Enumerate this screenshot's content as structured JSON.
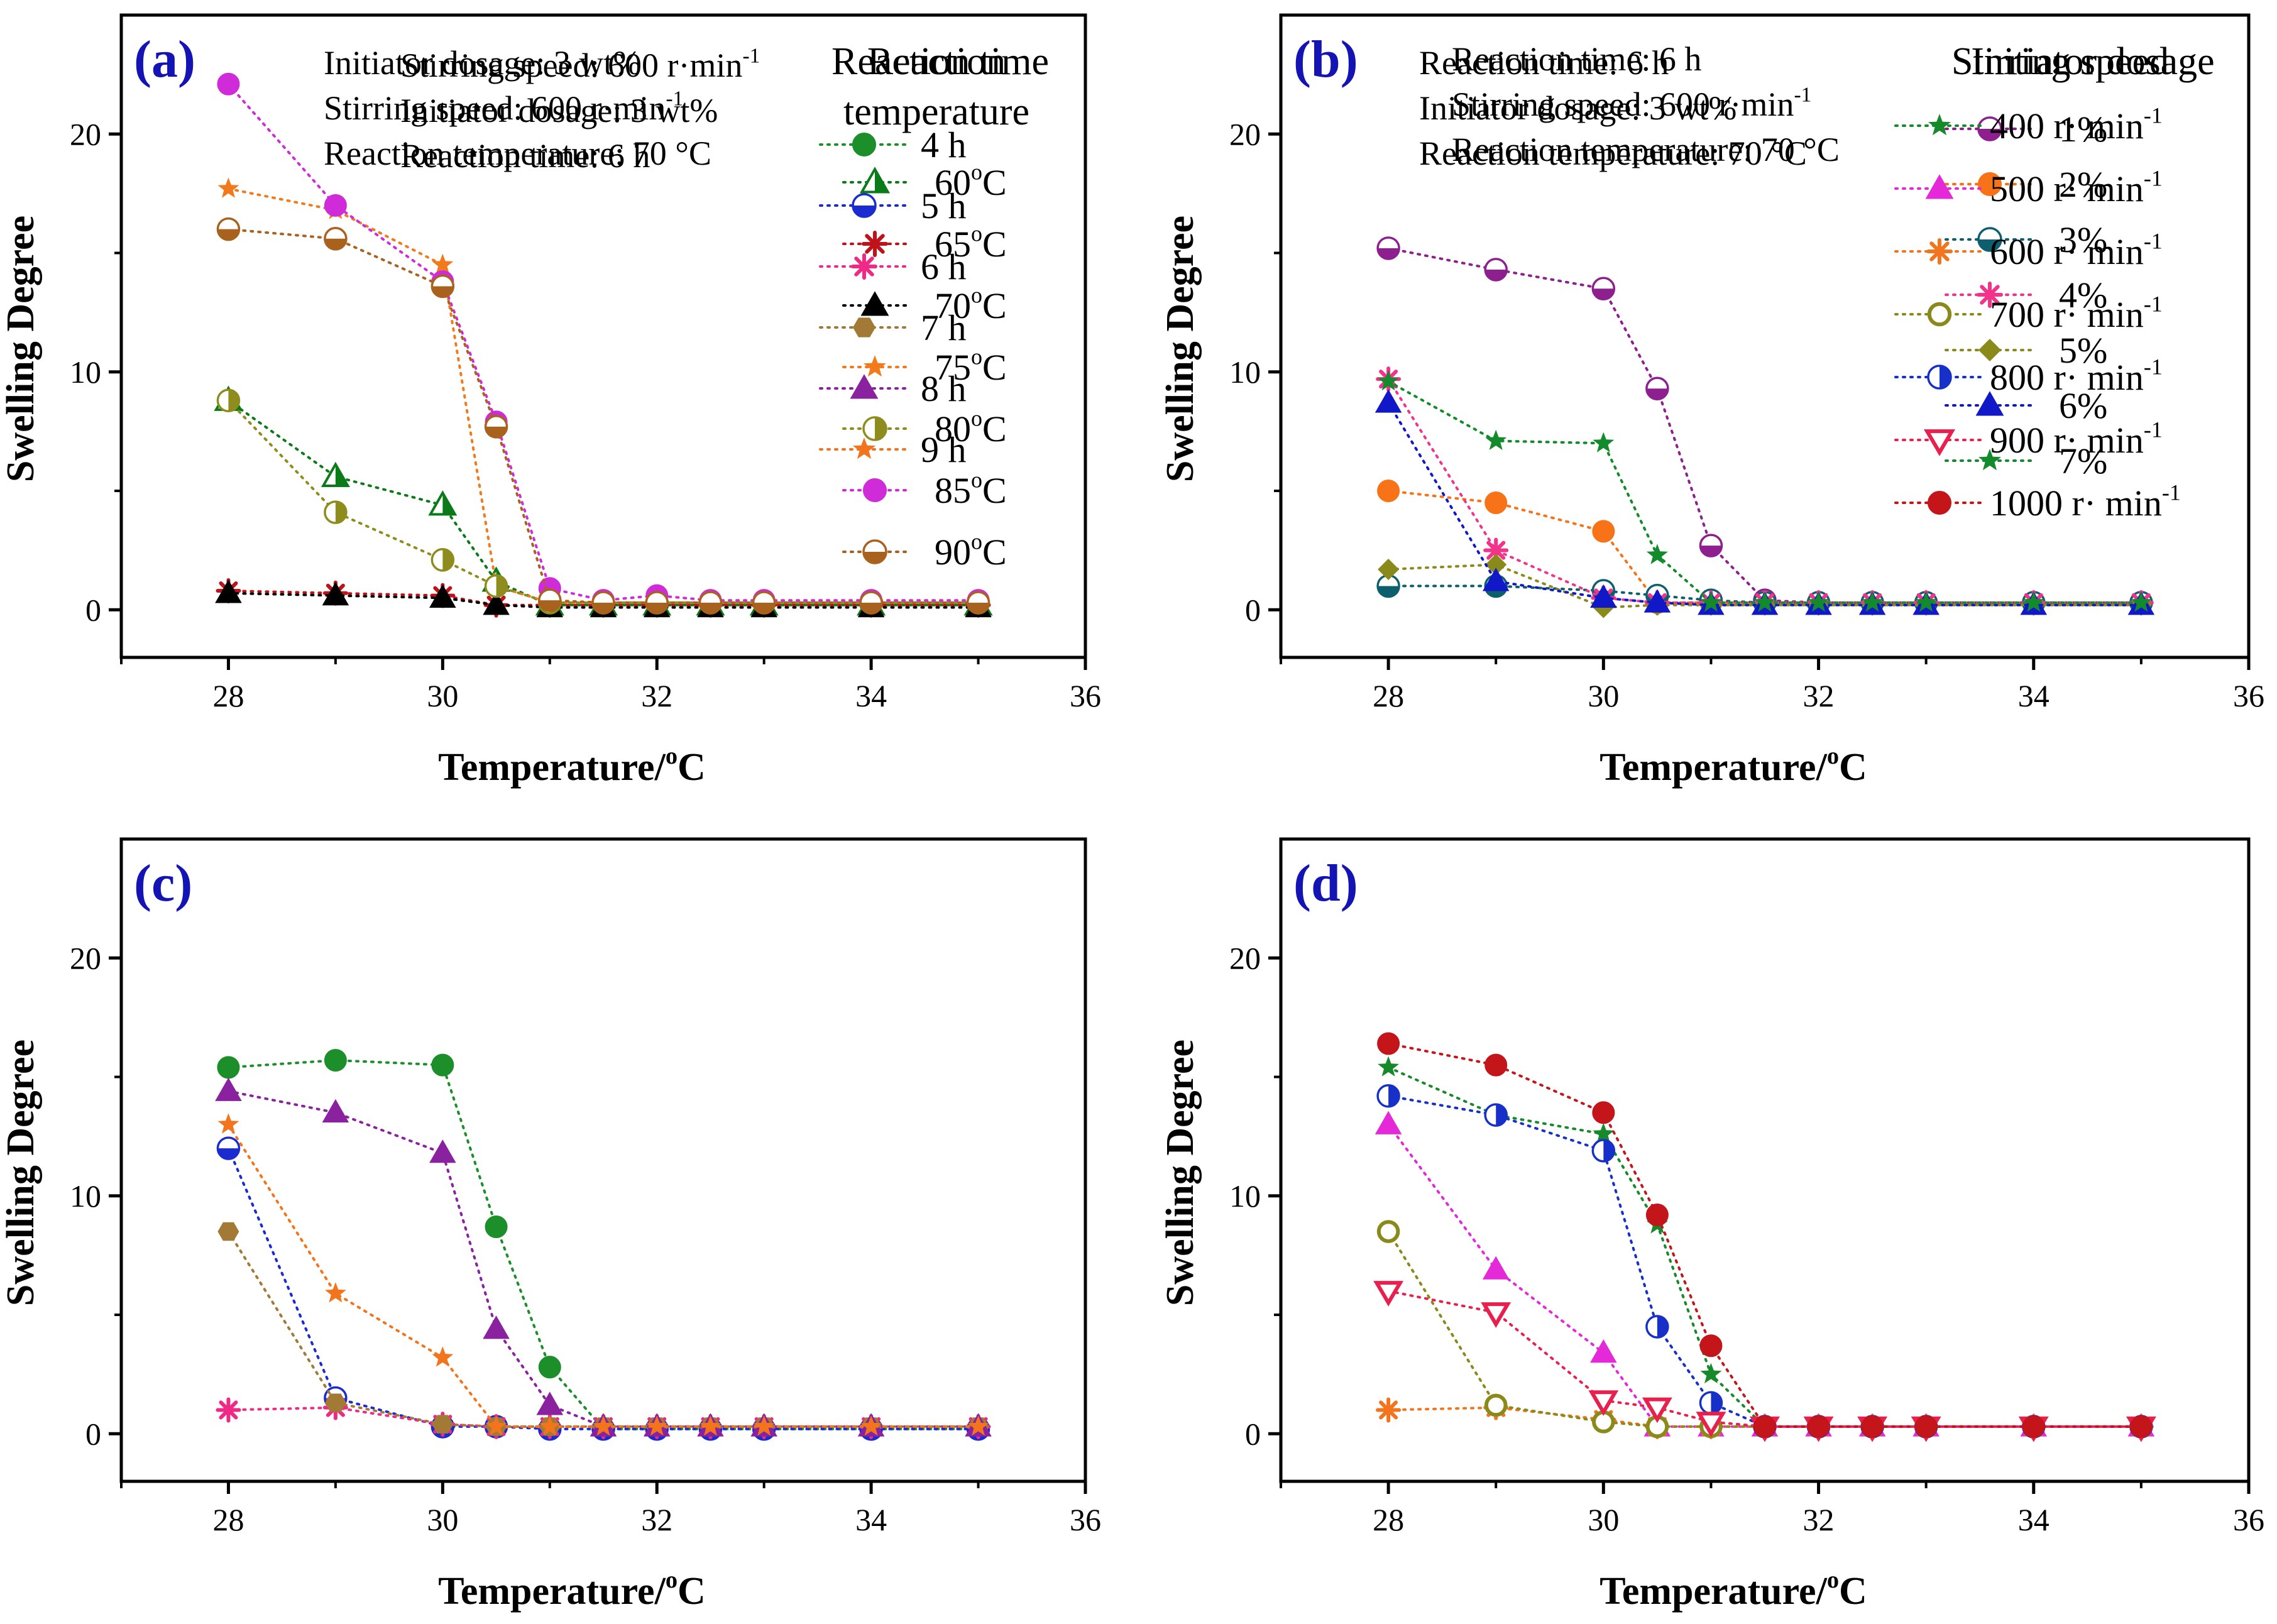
{
  "chart_data": [
    {
      "type": "line",
      "panel_label": "(a)",
      "xlabel": "Temperature/",
      "xlabel_sup": "o",
      "xlabel_unit": "C",
      "ylabel": "Swelling Degree",
      "xlim": [
        27,
        36
      ],
      "ylim": [
        -2,
        25
      ],
      "xticks": [
        28,
        30,
        32,
        34,
        36
      ],
      "yticks": [
        0,
        10,
        20
      ],
      "x": [
        28,
        29,
        30,
        30.5,
        31,
        31.5,
        32,
        32.5,
        33,
        34,
        35
      ],
      "conditions": [
        {
          "text": "Stirring speed: 600 r·min",
          "sup": "-1"
        },
        {
          "text": "Initiator dosage: 3 wt%",
          "sup": ""
        },
        {
          "text": "Reaction time: 6 h",
          "sup": ""
        }
      ],
      "legend_title": [
        "Reaction",
        "temperature"
      ],
      "series": [
        {
          "name": "60",
          "sup": "o",
          "suffix": "C",
          "color": "#0b7a18",
          "marker": "triangle-open",
          "values": [
            8.8,
            5.6,
            4.4,
            1.2,
            0.2,
            0.2,
            0.2,
            0.2,
            0.2,
            0.2,
            0.2
          ]
        },
        {
          "name": "65",
          "sup": "o",
          "suffix": "C",
          "color": "#c0121a",
          "marker": "asterisk",
          "values": [
            0.8,
            0.7,
            0.6,
            0.2,
            0.2,
            0.2,
            0.2,
            0.2,
            0.2,
            0.2,
            0.2
          ]
        },
        {
          "name": "70",
          "sup": "o",
          "suffix": "C",
          "color": "#000000",
          "marker": "triangle",
          "values": [
            0.7,
            0.6,
            0.5,
            0.2,
            0.1,
            0.1,
            0.1,
            0.1,
            0.1,
            0.1,
            0.1
          ]
        },
        {
          "name": "75",
          "sup": "o",
          "suffix": "C",
          "color": "#f07a1c",
          "marker": "star",
          "values": [
            17.7,
            16.8,
            14.5,
            1.0,
            0.3,
            0.3,
            0.3,
            0.3,
            0.3,
            0.3,
            0.3
          ]
        },
        {
          "name": "80",
          "sup": "o",
          "suffix": "C",
          "color": "#8f8c1e",
          "marker": "circle-half-right",
          "values": [
            8.8,
            4.1,
            2.1,
            1.0,
            0.3,
            0.3,
            0.3,
            0.3,
            0.3,
            0.3,
            0.3
          ]
        },
        {
          "name": "85",
          "sup": "o",
          "suffix": "C",
          "color": "#d02bd9",
          "marker": "circle",
          "values": [
            22.1,
            17.0,
            13.8,
            7.9,
            0.9,
            0.4,
            0.6,
            0.4,
            0.4,
            0.4,
            0.4
          ]
        },
        {
          "name": "90",
          "sup": "o",
          "suffix": "C",
          "color": "#a8621e",
          "marker": "circle-half-bottom",
          "values": [
            16.0,
            15.6,
            13.6,
            7.7,
            0.4,
            0.3,
            0.3,
            0.3,
            0.3,
            0.3,
            0.3
          ]
        }
      ]
    },
    {
      "type": "line",
      "panel_label": "(b)",
      "xlabel": "Temperature/",
      "xlabel_sup": "o",
      "xlabel_unit": "C",
      "ylabel": "Swelling Degree",
      "xlim": [
        27,
        36
      ],
      "ylim": [
        -2,
        25
      ],
      "xticks": [
        28,
        30,
        32,
        34,
        36
      ],
      "yticks": [
        0,
        10,
        20
      ],
      "x": [
        28,
        29,
        30,
        30.5,
        31,
        31.5,
        32,
        32.5,
        33,
        34,
        35
      ],
      "conditions": [
        {
          "text": "Reaction time: 6 h",
          "sup": ""
        },
        {
          "text": "Stirring speed: 600 r·min",
          "sup": "-1"
        },
        {
          "text": "Reaction temperature: 70 °C",
          "sup": ""
        }
      ],
      "legend_title": [
        "Initiator dosage"
      ],
      "series": [
        {
          "name": "1%",
          "sup": "",
          "suffix": "",
          "color": "#8e1f8e",
          "marker": "circle-half-bottom",
          "values": [
            15.2,
            14.3,
            13.5,
            9.3,
            2.7,
            0.4,
            0.3,
            0.3,
            0.3,
            0.3,
            0.3
          ]
        },
        {
          "name": "2%",
          "sup": "",
          "suffix": "",
          "color": "#f87218",
          "marker": "circle",
          "values": [
            5.0,
            4.5,
            3.3,
            0.3,
            0.3,
            0.3,
            0.3,
            0.3,
            0.3,
            0.3,
            0.3
          ]
        },
        {
          "name": "3%",
          "sup": "",
          "suffix": "",
          "color": "#0d5f6e",
          "marker": "circle-half-bottom",
          "values": [
            1.0,
            1.0,
            0.8,
            0.6,
            0.4,
            0.3,
            0.3,
            0.3,
            0.3,
            0.3,
            0.3
          ]
        },
        {
          "name": "4%",
          "sup": "",
          "suffix": "",
          "color": "#f2338b",
          "marker": "asterisk",
          "values": [
            9.7,
            2.5,
            0.5,
            0.3,
            0.3,
            0.3,
            0.3,
            0.3,
            0.3,
            0.3,
            0.3
          ]
        },
        {
          "name": "5%",
          "sup": "",
          "suffix": "",
          "color": "#8a8a1a",
          "marker": "diamond",
          "values": [
            1.7,
            1.9,
            0.1,
            0.2,
            0.2,
            0.2,
            0.2,
            0.2,
            0.2,
            0.2,
            0.2
          ]
        },
        {
          "name": "6%",
          "sup": "",
          "suffix": "",
          "color": "#1018c8",
          "marker": "triangle",
          "values": [
            8.7,
            1.2,
            0.5,
            0.3,
            0.2,
            0.2,
            0.2,
            0.2,
            0.2,
            0.2,
            0.2
          ]
        },
        {
          "name": "7%",
          "sup": "",
          "suffix": "",
          "color": "#138a2c",
          "marker": "star",
          "values": [
            9.6,
            7.1,
            7.0,
            2.3,
            0.3,
            0.3,
            0.3,
            0.3,
            0.3,
            0.3,
            0.3
          ]
        }
      ]
    },
    {
      "type": "line",
      "panel_label": "(c)",
      "xlabel": "Temperature/",
      "xlabel_sup": "o",
      "xlabel_unit": "C",
      "ylabel": "Swelling Degree",
      "xlim": [
        27,
        36
      ],
      "ylim": [
        -2,
        25
      ],
      "xticks": [
        28,
        30,
        32,
        34,
        36
      ],
      "yticks": [
        0,
        10,
        20
      ],
      "x": [
        28,
        29,
        30,
        30.5,
        31,
        31.5,
        32,
        32.5,
        33,
        34,
        35
      ],
      "conditions": [
        {
          "text": "Initiator dosage: 3 wt%",
          "sup": ""
        },
        {
          "text": "Stirring speed: 600 r·min",
          "sup": "-1"
        },
        {
          "text": "Reaction temperature: 70 °C",
          "sup": ""
        }
      ],
      "legend_title": [
        "Reaction time"
      ],
      "series": [
        {
          "name": "4 h",
          "sup": "",
          "suffix": "",
          "color": "#1c8f2a",
          "marker": "circle",
          "values": [
            15.4,
            15.7,
            15.5,
            8.7,
            2.8,
            0.2,
            0.2,
            0.2,
            0.2,
            0.2,
            0.2
          ]
        },
        {
          "name": "5 h",
          "sup": "",
          "suffix": "",
          "color": "#1a2bd0",
          "marker": "circle-half-bottom",
          "values": [
            12.0,
            1.5,
            0.3,
            0.3,
            0.2,
            0.2,
            0.2,
            0.2,
            0.2,
            0.2,
            0.2
          ]
        },
        {
          "name": "6 h",
          "sup": "",
          "suffix": "",
          "color": "#ef2a86",
          "marker": "asterisk",
          "values": [
            1.0,
            1.1,
            0.4,
            0.3,
            0.3,
            0.3,
            0.3,
            0.3,
            0.3,
            0.3,
            0.3
          ]
        },
        {
          "name": "7 h",
          "sup": "",
          "suffix": "",
          "color": "#a27a36",
          "marker": "hexagon",
          "values": [
            8.5,
            1.3,
            0.4,
            0.3,
            0.3,
            0.3,
            0.3,
            0.3,
            0.3,
            0.3,
            0.3
          ]
        },
        {
          "name": "8 h",
          "sup": "",
          "suffix": "",
          "color": "#8a22a0",
          "marker": "triangle",
          "values": [
            14.4,
            13.5,
            11.8,
            4.4,
            1.2,
            0.3,
            0.3,
            0.3,
            0.3,
            0.3,
            0.3
          ]
        },
        {
          "name": "9 h",
          "sup": "",
          "suffix": "",
          "color": "#f2741c",
          "marker": "star",
          "values": [
            13.0,
            5.9,
            3.2,
            0.3,
            0.3,
            0.3,
            0.3,
            0.3,
            0.3,
            0.3,
            0.3
          ]
        }
      ]
    },
    {
      "type": "line",
      "panel_label": "(d)",
      "xlabel": "Temperature/",
      "xlabel_sup": "o",
      "xlabel_unit": "C",
      "ylabel": "Swelling Degree",
      "xlim": [
        27,
        36
      ],
      "ylim": [
        -2,
        25
      ],
      "xticks": [
        28,
        30,
        32,
        34,
        36
      ],
      "yticks": [
        0,
        10,
        20
      ],
      "x": [
        28,
        29,
        30,
        30.5,
        31,
        31.5,
        32,
        32.5,
        33,
        34,
        35
      ],
      "conditions": [
        {
          "text": "Reaction time: 6 h",
          "sup": ""
        },
        {
          "text": "Initiator dosage: 3 wt%",
          "sup": ""
        },
        {
          "text": "Reaction temperature: 70 °C",
          "sup": ""
        }
      ],
      "legend_title": [
        "Stirring speed"
      ],
      "series": [
        {
          "name": "400 r· min",
          "sup": "-1",
          "suffix": "",
          "color": "#168a2a",
          "marker": "star",
          "values": [
            15.4,
            13.4,
            12.6,
            8.8,
            2.5,
            0.3,
            0.3,
            0.3,
            0.3,
            0.3,
            0.3
          ]
        },
        {
          "name": "500 r· min",
          "sup": "-1",
          "suffix": "",
          "color": "#e42ad8",
          "marker": "triangle",
          "values": [
            13.0,
            6.9,
            3.4,
            0.3,
            0.3,
            0.3,
            0.3,
            0.3,
            0.3,
            0.3,
            0.3
          ]
        },
        {
          "name": "600 r· min",
          "sup": "-1",
          "suffix": "",
          "color": "#f2741c",
          "marker": "asterisk",
          "values": [
            1.0,
            1.1,
            0.6,
            0.3,
            0.3,
            0.3,
            0.3,
            0.3,
            0.3,
            0.3,
            0.3
          ]
        },
        {
          "name": "700 r· min",
          "sup": "-1",
          "suffix": "",
          "color": "#8a8a1a",
          "marker": "circle-open",
          "values": [
            8.5,
            1.2,
            0.5,
            0.3,
            0.3,
            0.3,
            0.3,
            0.3,
            0.3,
            0.3,
            0.3
          ]
        },
        {
          "name": "800 r· min",
          "sup": "-1",
          "suffix": "",
          "color": "#1730c8",
          "marker": "circle-half-right",
          "values": [
            14.2,
            13.4,
            11.9,
            4.5,
            1.3,
            0.3,
            0.3,
            0.3,
            0.3,
            0.3,
            0.3
          ]
        },
        {
          "name": "900 r· min",
          "sup": "-1",
          "suffix": "",
          "color": "#e8204e",
          "marker": "triangle-down-open",
          "values": [
            6.0,
            5.1,
            1.4,
            1.1,
            0.5,
            0.3,
            0.3,
            0.3,
            0.3,
            0.3,
            0.3
          ]
        },
        {
          "name": "1000 r· min",
          "sup": "-1",
          "suffix": "",
          "color": "#c3151a",
          "marker": "circle",
          "values": [
            16.4,
            15.5,
            13.5,
            9.2,
            3.7,
            0.3,
            0.3,
            0.3,
            0.3,
            0.3,
            0.3
          ]
        }
      ]
    }
  ]
}
